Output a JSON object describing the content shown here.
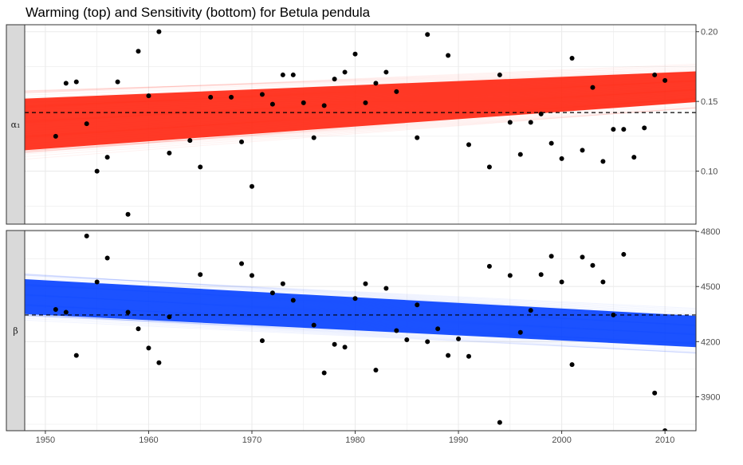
{
  "chart_data": {
    "type": "scatter",
    "title": "Warming (top) and Sensitivity (bottom) for Betula pendula",
    "xlabel": "",
    "ylabel": "",
    "x_ticks": [
      1950,
      1960,
      1970,
      1980,
      1990,
      2000,
      2010
    ],
    "xlim": [
      1948,
      2013
    ],
    "grid": true,
    "colors": {
      "alpha_band": "#ff2a16",
      "beta_band": "#0b45ff",
      "points": "#000000",
      "strip": "#d9d9d9",
      "grid": "#ebebeb"
    },
    "panels": [
      {
        "strip": "α₁",
        "ylim": [
          0.062,
          0.205
        ],
        "y_ticks": [
          0.1,
          0.15,
          0.2
        ],
        "y_tick_labels": [
          "0.10",
          "0.15",
          "0.20"
        ],
        "reference_line": 0.142,
        "band": {
          "left_center": 0.1335,
          "left_halfwidth": 0.0185,
          "right_center": 0.1605,
          "right_halfwidth": 0.011,
          "label": ""
        },
        "points": [
          {
            "x": 1951,
            "y": 0.125
          },
          {
            "x": 1952,
            "y": 0.163
          },
          {
            "x": 1953,
            "y": 0.164
          },
          {
            "x": 1954,
            "y": 0.134
          },
          {
            "x": 1955,
            "y": 0.1
          },
          {
            "x": 1956,
            "y": 0.11
          },
          {
            "x": 1957,
            "y": 0.164
          },
          {
            "x": 1958,
            "y": 0.069
          },
          {
            "x": 1959,
            "y": 0.186
          },
          {
            "x": 1960,
            "y": 0.154
          },
          {
            "x": 1961,
            "y": 0.2
          },
          {
            "x": 1962,
            "y": 0.113
          },
          {
            "x": 1964,
            "y": 0.122
          },
          {
            "x": 1965,
            "y": 0.103
          },
          {
            "x": 1966,
            "y": 0.153
          },
          {
            "x": 1968,
            "y": 0.153
          },
          {
            "x": 1969,
            "y": 0.121
          },
          {
            "x": 1970,
            "y": 0.089
          },
          {
            "x": 1971,
            "y": 0.155
          },
          {
            "x": 1972,
            "y": 0.148
          },
          {
            "x": 1973,
            "y": 0.169
          },
          {
            "x": 1974,
            "y": 0.169
          },
          {
            "x": 1975,
            "y": 0.149
          },
          {
            "x": 1976,
            "y": 0.124
          },
          {
            "x": 1977,
            "y": 0.147
          },
          {
            "x": 1978,
            "y": 0.166
          },
          {
            "x": 1979,
            "y": 0.171
          },
          {
            "x": 1980,
            "y": 0.184
          },
          {
            "x": 1981,
            "y": 0.149
          },
          {
            "x": 1982,
            "y": 0.163
          },
          {
            "x": 1983,
            "y": 0.171
          },
          {
            "x": 1984,
            "y": 0.157
          },
          {
            "x": 1986,
            "y": 0.124
          },
          {
            "x": 1987,
            "y": 0.198
          },
          {
            "x": 1989,
            "y": 0.183
          },
          {
            "x": 1991,
            "y": 0.119
          },
          {
            "x": 1993,
            "y": 0.103
          },
          {
            "x": 1994,
            "y": 0.169
          },
          {
            "x": 1995,
            "y": 0.135
          },
          {
            "x": 1996,
            "y": 0.112
          },
          {
            "x": 1997,
            "y": 0.135
          },
          {
            "x": 1998,
            "y": 0.141
          },
          {
            "x": 1999,
            "y": 0.12
          },
          {
            "x": 2000,
            "y": 0.109
          },
          {
            "x": 2001,
            "y": 0.181
          },
          {
            "x": 2002,
            "y": 0.115
          },
          {
            "x": 2003,
            "y": 0.16
          },
          {
            "x": 2004,
            "y": 0.107
          },
          {
            "x": 2005,
            "y": 0.13
          },
          {
            "x": 2006,
            "y": 0.13
          },
          {
            "x": 2007,
            "y": 0.11
          },
          {
            "x": 2008,
            "y": 0.131
          },
          {
            "x": 2009,
            "y": 0.169
          },
          {
            "x": 2010,
            "y": 0.165
          }
        ]
      },
      {
        "strip": "β",
        "ylim": [
          3715,
          4805
        ],
        "y_ticks": [
          3900,
          4200,
          4500,
          4800
        ],
        "y_tick_labels": [
          "3900",
          "4200",
          "4500",
          "4800"
        ],
        "reference_line": 4345,
        "band": {
          "left_center": 4445,
          "left_halfwidth": 95,
          "right_center": 4255,
          "right_halfwidth": 85,
          "label": ""
        },
        "points": [
          {
            "x": 1951,
            "y": 4375
          },
          {
            "x": 1952,
            "y": 4360
          },
          {
            "x": 1953,
            "y": 4125
          },
          {
            "x": 1954,
            "y": 4775
          },
          {
            "x": 1955,
            "y": 4525
          },
          {
            "x": 1956,
            "y": 4655
          },
          {
            "x": 1958,
            "y": 4360
          },
          {
            "x": 1959,
            "y": 4270
          },
          {
            "x": 1960,
            "y": 4165
          },
          {
            "x": 1961,
            "y": 4085
          },
          {
            "x": 1962,
            "y": 4335
          },
          {
            "x": 1965,
            "y": 4565
          },
          {
            "x": 1969,
            "y": 4625
          },
          {
            "x": 1970,
            "y": 4560
          },
          {
            "x": 1971,
            "y": 4205
          },
          {
            "x": 1972,
            "y": 4465
          },
          {
            "x": 1973,
            "y": 4515
          },
          {
            "x": 1974,
            "y": 4425
          },
          {
            "x": 1976,
            "y": 4290
          },
          {
            "x": 1977,
            "y": 4030
          },
          {
            "x": 1978,
            "y": 4185
          },
          {
            "x": 1979,
            "y": 4170
          },
          {
            "x": 1980,
            "y": 4435
          },
          {
            "x": 1981,
            "y": 4515
          },
          {
            "x": 1982,
            "y": 4045
          },
          {
            "x": 1983,
            "y": 4490
          },
          {
            "x": 1984,
            "y": 4260
          },
          {
            "x": 1985,
            "y": 4210
          },
          {
            "x": 1986,
            "y": 4400
          },
          {
            "x": 1987,
            "y": 4200
          },
          {
            "x": 1988,
            "y": 4270
          },
          {
            "x": 1989,
            "y": 4125
          },
          {
            "x": 1990,
            "y": 4215
          },
          {
            "x": 1991,
            "y": 4120
          },
          {
            "x": 1993,
            "y": 4610
          },
          {
            "x": 1994,
            "y": 3760
          },
          {
            "x": 1995,
            "y": 4560
          },
          {
            "x": 1996,
            "y": 4250
          },
          {
            "x": 1997,
            "y": 4370
          },
          {
            "x": 1998,
            "y": 4565
          },
          {
            "x": 1999,
            "y": 4665
          },
          {
            "x": 2000,
            "y": 4525
          },
          {
            "x": 2001,
            "y": 4075
          },
          {
            "x": 2002,
            "y": 4660
          },
          {
            "x": 2003,
            "y": 4615
          },
          {
            "x": 2004,
            "y": 4525
          },
          {
            "x": 2005,
            "y": 4345
          },
          {
            "x": 2006,
            "y": 4675
          },
          {
            "x": 2009,
            "y": 3920
          },
          {
            "x": 2010,
            "y": 3715
          }
        ]
      }
    ]
  }
}
